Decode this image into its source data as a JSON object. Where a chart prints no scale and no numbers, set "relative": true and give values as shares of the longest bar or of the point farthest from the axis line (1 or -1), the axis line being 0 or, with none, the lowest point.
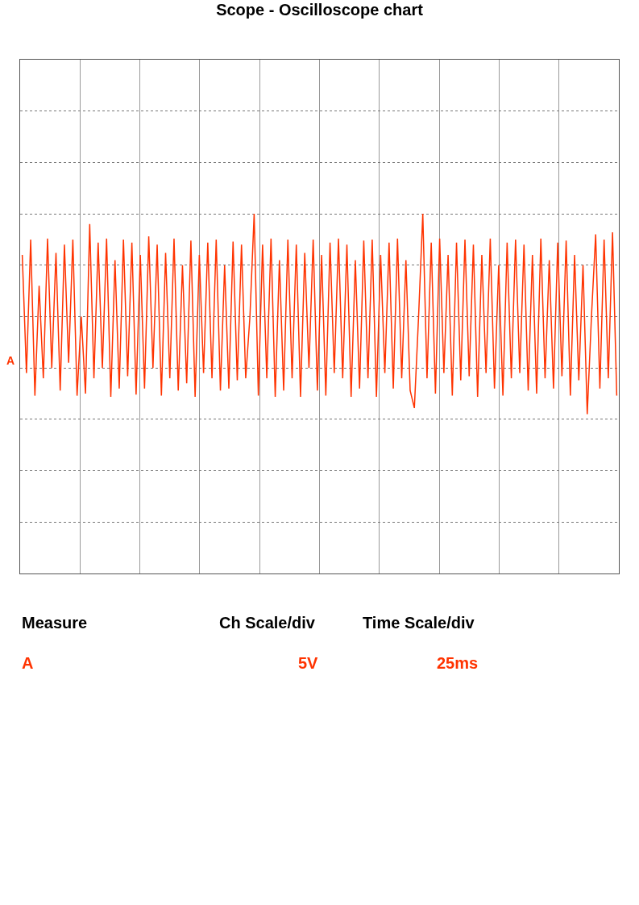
{
  "chart_data": {
    "type": "line",
    "title": "Scope - Oscilloscope chart",
    "relative": true,
    "grid": true,
    "marker": "none",
    "line_style": "solid",
    "categories": [
      null,
      null,
      null,
      null,
      null,
      null,
      null,
      null,
      null,
      null,
      null,
      null,
      null,
      null,
      null,
      null,
      null,
      null,
      null,
      null,
      null,
      null,
      null,
      null,
      null,
      null,
      null,
      null,
      null,
      null,
      null,
      null,
      null,
      null,
      null,
      null,
      null,
      null,
      null,
      null,
      null,
      null,
      null,
      null,
      null,
      null,
      null,
      null,
      null,
      null,
      null,
      null,
      null,
      null,
      null,
      null,
      null,
      null,
      null,
      null,
      null,
      null,
      null,
      null,
      null,
      null,
      null,
      null,
      null,
      null,
      null,
      null,
      null,
      null,
      null,
      null,
      null,
      null,
      null,
      null,
      null,
      null,
      null,
      null,
      null,
      null,
      null,
      null,
      null,
      null,
      null,
      null,
      null,
      null,
      null,
      null,
      null,
      null,
      null,
      null,
      null,
      null,
      null,
      null,
      null,
      null,
      null,
      null,
      null,
      null,
      null,
      null,
      null,
      null,
      null,
      null,
      null,
      null,
      null,
      null,
      null,
      null,
      null,
      null,
      null,
      null,
      null,
      null,
      null,
      null,
      null,
      null,
      null,
      null,
      null,
      null,
      null,
      null,
      null,
      null,
      null,
      null
    ],
    "series": [
      {
        "color": "#ff3300",
        "values": [
          0.6,
          -0.55,
          0.75,
          -0.77,
          0.3,
          -0.6,
          0.76,
          -0.5,
          0.62,
          -0.72,
          0.7,
          -0.45,
          0.75,
          -0.77,
          0.0,
          -0.75,
          0.9,
          -0.6,
          0.72,
          -0.5,
          0.76,
          -0.78,
          0.55,
          -0.7,
          0.75,
          -0.58,
          0.72,
          -0.76,
          0.6,
          -0.7,
          0.78,
          -0.5,
          0.7,
          -0.77,
          0.62,
          -0.6,
          0.76,
          -0.72,
          0.5,
          -0.65,
          0.74,
          -0.78,
          0.6,
          -0.55,
          0.72,
          -0.6,
          0.75,
          -0.72,
          0.5,
          -0.7,
          0.73,
          -0.62,
          0.7,
          -0.6,
          0.0,
          1.0,
          -0.77,
          0.7,
          -0.6,
          0.76,
          -0.78,
          0.55,
          -0.72,
          0.75,
          -0.6,
          0.7,
          -0.78,
          0.62,
          -0.5,
          0.75,
          -0.72,
          0.6,
          -0.77,
          0.72,
          -0.55,
          0.76,
          -0.6,
          0.7,
          -0.78,
          0.55,
          -0.7,
          0.74,
          -0.6,
          0.75,
          -0.78,
          0.6,
          -0.55,
          0.72,
          -0.7,
          0.76,
          -0.6,
          0.55,
          -0.72,
          -0.89,
          0.0,
          1.0,
          -0.6,
          0.72,
          -0.75,
          0.76,
          -0.55,
          0.6,
          -0.77,
          0.72,
          -0.62,
          0.75,
          -0.58,
          0.7,
          -0.78,
          0.6,
          -0.55,
          0.76,
          -0.7,
          0.5,
          -0.77,
          0.72,
          -0.6,
          0.75,
          -0.55,
          0.7,
          -0.72,
          0.6,
          -0.75,
          0.76,
          -0.6,
          0.55,
          -0.7,
          0.72,
          -0.58,
          0.74,
          -0.77,
          0.6,
          -0.62,
          0.5,
          -0.95,
          0.0,
          0.8,
          -0.7,
          0.75,
          -0.6,
          0.82,
          -0.77
        ]
      }
    ],
    "annotations": [
      "A",
      "Measure",
      "Ch Scale/div",
      "Time Scale/div",
      "A",
      "5V",
      "25ms"
    ]
  }
}
